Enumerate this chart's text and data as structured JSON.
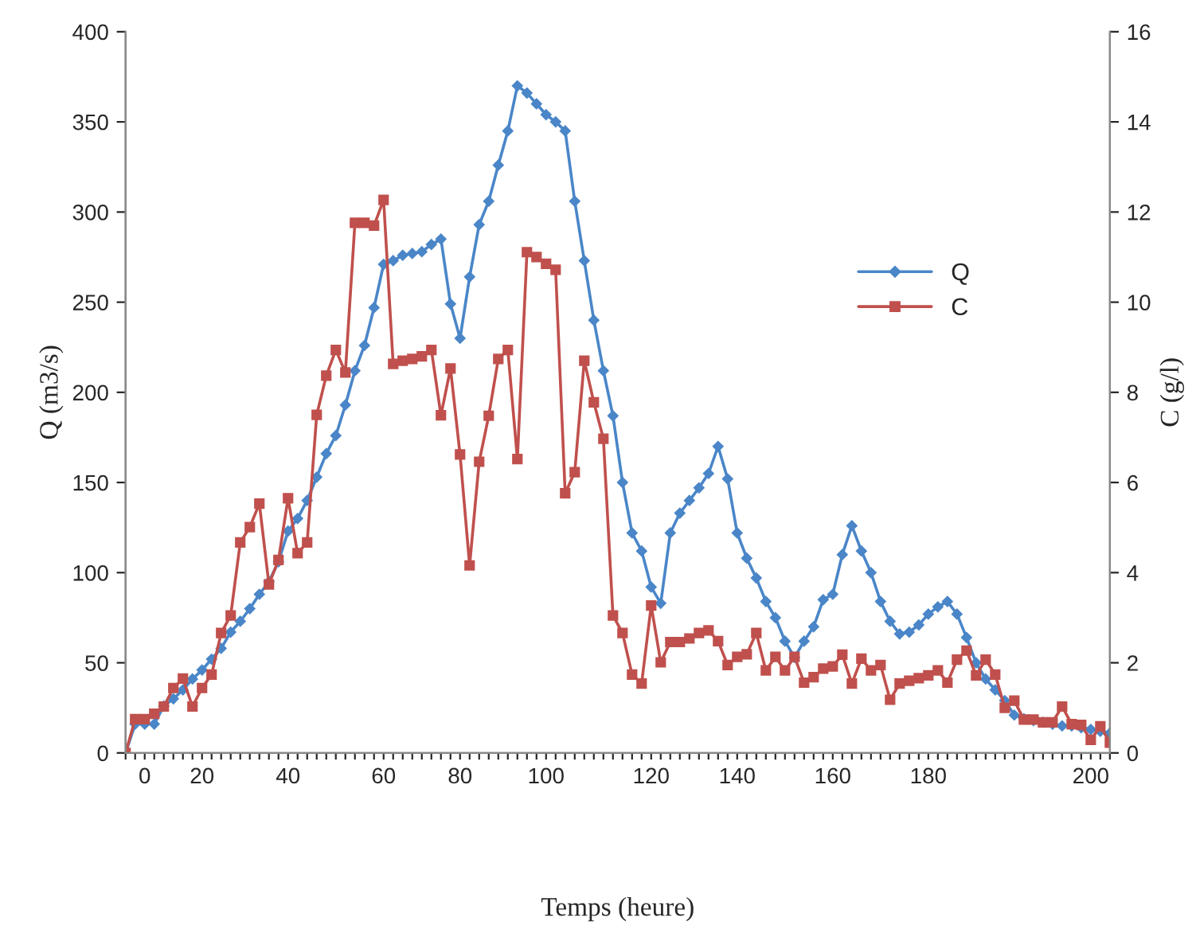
{
  "chart_data": {
    "type": "line",
    "xlabel": "Temps (heure)",
    "ylabel": "Q (m3/s)",
    "y2label": "C (g/l)",
    "categories": [
      null,
      null,
      "0",
      null,
      null,
      null,
      null,
      null,
      "20",
      null,
      null,
      null,
      null,
      null,
      null,
      null,
      null,
      "40",
      null,
      null,
      null,
      null,
      null,
      null,
      null,
      null,
      null,
      "60",
      null,
      null,
      null,
      null,
      null,
      null,
      null,
      "80",
      null,
      null,
      null,
      null,
      null,
      null,
      null,
      null,
      "100",
      null,
      null,
      null,
      null,
      null,
      null,
      null,
      null,
      null,
      null,
      "120",
      null,
      null,
      null,
      null,
      null,
      null,
      null,
      null,
      "140",
      null,
      null,
      null,
      null,
      null,
      null,
      null,
      null,
      null,
      "160",
      null,
      null,
      null,
      null,
      null,
      null,
      null,
      null,
      null,
      "180",
      null,
      null,
      null,
      null,
      null,
      null,
      null,
      null,
      null,
      null,
      null,
      null,
      null,
      null,
      null,
      null,
      "200",
      null,
      null
    ],
    "series": [
      {
        "name": "Q",
        "color": "#4a86c8",
        "marker": "diamond",
        "values": [
          0,
          16,
          16,
          16,
          26,
          30,
          35,
          41,
          46,
          52,
          58,
          67,
          73,
          80,
          88,
          95,
          106,
          123,
          130,
          140,
          153,
          166,
          176,
          193,
          212,
          226,
          247,
          271,
          273,
          276,
          277,
          278,
          282,
          285,
          249,
          230,
          264,
          293,
          306,
          326,
          345,
          370,
          366,
          360,
          354,
          350,
          345,
          306,
          273,
          240,
          212,
          187,
          150,
          122,
          112,
          92,
          83,
          122,
          133,
          140,
          147,
          155,
          170,
          152,
          122,
          108,
          97,
          84,
          75,
          62,
          53,
          62,
          70,
          85,
          88,
          110,
          126,
          112,
          100,
          84,
          73,
          66,
          67,
          71,
          77,
          81,
          84,
          77,
          64,
          50,
          41,
          35,
          29,
          21,
          19,
          18,
          17,
          16,
          15,
          15,
          14,
          13,
          12,
          11
        ]
      },
      {
        "name": "C",
        "color": "#c0504d",
        "marker": "square",
        "axis": "y2",
        "values": [
          0,
          0.75,
          0.75,
          0.87,
          1.03,
          1.44,
          1.65,
          1.03,
          1.44,
          1.74,
          2.66,
          3.05,
          4.67,
          5.01,
          5.53,
          3.74,
          4.28,
          5.65,
          4.43,
          4.67,
          7.5,
          8.37,
          8.94,
          8.44,
          11.76,
          11.76,
          11.7,
          12.27,
          8.63,
          8.7,
          8.74,
          8.8,
          8.94,
          7.49,
          8.53,
          6.62,
          4.16,
          6.46,
          7.48,
          8.74,
          8.94,
          6.52,
          11.11,
          11.0,
          10.85,
          10.72,
          5.76,
          6.23,
          8.7,
          7.78,
          6.97,
          3.05,
          2.66,
          1.74,
          1.54,
          3.27,
          2.01,
          2.46,
          2.46,
          2.54,
          2.66,
          2.72,
          2.48,
          1.95,
          2.13,
          2.19,
          2.66,
          1.83,
          2.13,
          1.83,
          2.13,
          1.56,
          1.68,
          1.87,
          1.92,
          2.18,
          1.54,
          2.09,
          1.83,
          1.95,
          1.18,
          1.54,
          1.6,
          1.66,
          1.72,
          1.83,
          1.56,
          2.07,
          2.27,
          1.72,
          2.07,
          1.74,
          1.0,
          1.16,
          0.74,
          0.74,
          0.68,
          0.68,
          1.03,
          0.64,
          0.62,
          0.29,
          0.59,
          0.23
        ]
      }
    ],
    "ylim": [
      0,
      400
    ],
    "yticks": [
      0,
      50,
      100,
      150,
      200,
      250,
      300,
      350,
      400
    ],
    "y2lim": [
      0,
      16
    ],
    "y2ticks": [
      0,
      2,
      4,
      6,
      8,
      10,
      12,
      14,
      16
    ],
    "grid": false,
    "legend": "right"
  }
}
